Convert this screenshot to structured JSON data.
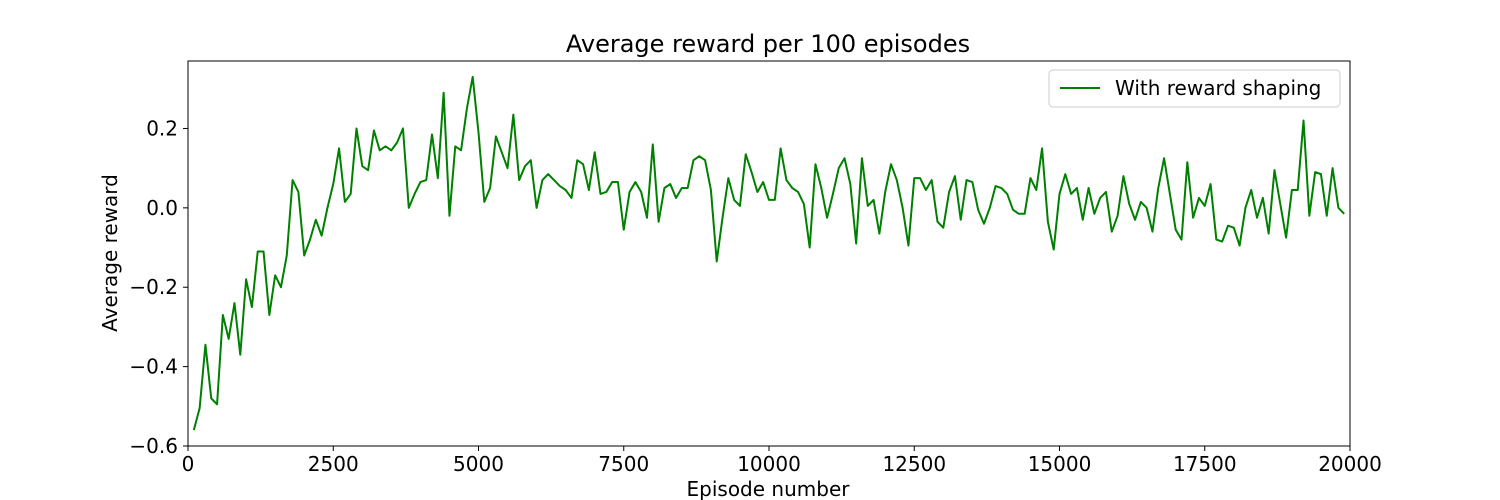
{
  "chart_data": {
    "type": "line",
    "title": "Average reward per 100 episodes",
    "xlabel": "Episode number",
    "ylabel": "Average reward",
    "xlim": [
      0,
      20000
    ],
    "ylim": [
      -0.6,
      0.37
    ],
    "x_ticks": [
      0,
      2500,
      5000,
      7500,
      10000,
      12500,
      15000,
      17500,
      20000
    ],
    "x_tick_labels": [
      "0",
      "2500",
      "5000",
      "7500",
      "10000",
      "12500",
      "15000",
      "17500",
      "20000"
    ],
    "y_ticks": [
      -0.6,
      -0.4,
      -0.2,
      0.0,
      0.2
    ],
    "y_tick_labels": [
      "−0.6",
      "−0.4",
      "−0.2",
      "0.0",
      "0.2"
    ],
    "grid": false,
    "legend_position": "upper right",
    "series": [
      {
        "name": "With reward shaping",
        "color": "#008000",
        "x_start": 100,
        "x_step": 100,
        "values": [
          -0.56,
          -0.505,
          -0.345,
          -0.48,
          -0.495,
          -0.27,
          -0.33,
          -0.24,
          -0.37,
          -0.18,
          -0.25,
          -0.11,
          -0.11,
          -0.27,
          -0.17,
          -0.2,
          -0.12,
          0.07,
          0.04,
          -0.12,
          -0.08,
          -0.03,
          -0.07,
          0.0,
          0.06,
          0.15,
          0.015,
          0.035,
          0.2,
          0.105,
          0.095,
          0.195,
          0.145,
          0.155,
          0.145,
          0.165,
          0.2,
          0.0,
          0.035,
          0.065,
          0.07,
          0.185,
          0.075,
          0.29,
          -0.02,
          0.155,
          0.145,
          0.25,
          0.33,
          0.19,
          0.015,
          0.05,
          0.18,
          0.14,
          0.1,
          0.235,
          0.07,
          0.105,
          0.12,
          0.0,
          0.07,
          0.085,
          0.07,
          0.055,
          0.045,
          0.025,
          0.12,
          0.11,
          0.045,
          0.14,
          0.035,
          0.04,
          0.065,
          0.065,
          -0.055,
          0.04,
          0.065,
          0.04,
          -0.025,
          0.16,
          -0.035,
          0.05,
          0.06,
          0.025,
          0.05,
          0.05,
          0.12,
          0.13,
          0.12,
          0.045,
          -0.135,
          -0.025,
          0.075,
          0.02,
          0.005,
          0.135,
          0.09,
          0.04,
          0.065,
          0.02,
          0.02,
          0.15,
          0.07,
          0.05,
          0.04,
          0.01,
          -0.1,
          0.11,
          0.05,
          -0.025,
          0.035,
          0.1,
          0.125,
          0.06,
          -0.09,
          0.125,
          0.005,
          0.02,
          -0.065,
          0.04,
          0.11,
          0.07,
          0.0,
          -0.095,
          0.075,
          0.075,
          0.045,
          0.07,
          -0.035,
          -0.05,
          0.04,
          0.08,
          -0.03,
          0.07,
          0.065,
          -0.005,
          -0.04,
          0.0,
          0.055,
          0.05,
          0.035,
          -0.005,
          -0.015,
          -0.015,
          0.075,
          0.045,
          0.15,
          -0.035,
          -0.105,
          0.035,
          0.085,
          0.035,
          0.05,
          -0.03,
          0.05,
          -0.015,
          0.025,
          0.04,
          -0.06,
          -0.02,
          0.08,
          0.01,
          -0.03,
          0.015,
          0.0,
          -0.06,
          0.05,
          0.125,
          0.035,
          -0.055,
          -0.08,
          0.115,
          -0.025,
          0.025,
          0.005,
          0.06,
          -0.08,
          -0.085,
          -0.045,
          -0.05,
          -0.095,
          0.0,
          0.045,
          -0.025,
          0.025,
          -0.065,
          0.095,
          0.01,
          -0.075,
          0.045,
          0.045,
          0.22,
          -0.02,
          0.09,
          0.085,
          -0.02,
          0.1,
          0.0,
          -0.015
        ]
      }
    ]
  }
}
